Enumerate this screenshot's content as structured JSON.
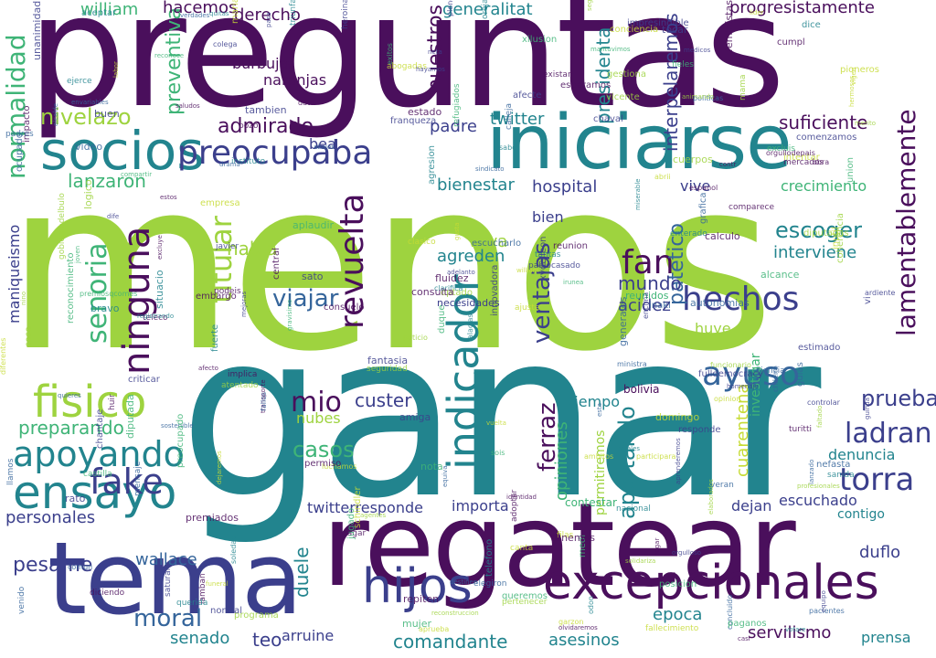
{
  "colors": {
    "dark_purple": "#4a0f5c",
    "indigo": "#3b3f8c",
    "blue": "#35659b",
    "teal": "#22848e",
    "green": "#3fb477",
    "lime": "#9ed33f",
    "yellow_green": "#c6db34"
  },
  "words": {
    "menos": "menos",
    "ganar": "ganar",
    "preguntas": "preguntas",
    "regatear": "regatear",
    "tema": "tema",
    "iniciarse": "iniciarse",
    "socios": "socios",
    "excepcionales": "excepcionales",
    "hijos": "hijos",
    "ensayo": "ensayo",
    "apoyando": "apoyando",
    "fisico": "fisico",
    "fake": "fake",
    "preocupaba": "preocupaba",
    "indicador": "indicador",
    "revuelta": "revuelta",
    "ninguna": "ninguna",
    "senoria": "senoria",
    "titular": "titular",
    "hechos": "hechos",
    "fan": "fan",
    "viajar": "viajar",
    "ayuso": "ayuso",
    "torra": "torra",
    "ladran": "ladran",
    "prueba": "prueba",
    "mio": "mio",
    "lamentablemente": "lamentablemente",
    "ferraz": "ferraz",
    "aportando": "aportando",
    "ventajas": "ventajas",
    "pesame": "pesame",
    "moral": "moral",
    "hacemos": "hacemos",
    "nuestros": "nuestros",
    "generalitat": "generalitat",
    "progresistamente": "progresistamente",
    "william": "william",
    "normalidad": "normalidad",
    "admirado": "admirado",
    "suficiente": "suficiente",
    "lanzaron": "lanzaron",
    "preparando": "preparando",
    "comandante": "comandante",
    "asesinos": "asesinos",
    "servilismo": "servilismo",
    "senado": "senado",
    "prensa": "prensa",
    "teo": "teo",
    "arruine": "arruine",
    "wallace": "wallace",
    "personales": "personales",
    "casos": "casos",
    "escuchado": "escuchado",
    "dejan": "dejan",
    "duflo": "duflo",
    "denuncia": "denuncia",
    "custer": "custer",
    "tiempo": "tiempo",
    "hospital": "hospital",
    "escoger": "escoger",
    "interviene": "interviene",
    "crecimiento": "crecimiento",
    "padre": "padre",
    "twitter": "twitter",
    "bienestar": "bienestar",
    "patetico": "patetico",
    "presidenta": "presidenta",
    "interpelaremos": "interpelaremos",
    "derecho": "derecho",
    "burbuja": "burbuja",
    "naranjas": "naranjas",
    "preventiva": "preventiva",
    "habla": "habla",
    "mundo": "mundo",
    "acidez": "acidez",
    "agreden": "agreden",
    "bien": "bien",
    "vive": "vive",
    "epoca": "epoca",
    "huye": "huye",
    "importa": "importa",
    "duele": "duele",
    "manifiesto": "manifiesto",
    "nivelazo": "nivelazo",
    "maniqueismo": "maniqueismo",
    "twitterresponde": "twitterresponde",
    "bea": "bea",
    "nubes": "nubes",
    "vava": "vava",
    "cuarentena": "cuarentena",
    "opiniones": "opiniones",
    "permitiremos": "permitiremos",
    "investigar": "investigar",
    "bolivia": "bolivia",
    "ocurrira": "ocurrira",
    "contestar": "contestar",
    "necesidades": "necesidades",
    "reunidos": "reunidos",
    "contigo": "contigo",
    "conciencia": "conciencia",
    "teleconciencia": "teleconciencia",
    "twitterresponde2": "twitterresponde"
  },
  "small_words": [
    "podeis",
    "william",
    "reconocimiento",
    "innovadora",
    "vigen",
    "fantasia",
    "ardiente",
    "mensaje",
    "obra",
    "pablocasado",
    "embargo",
    "esta",
    "clarifica",
    "instituto",
    "orgulloso",
    "domingo",
    "abajos",
    "programa",
    "exitos",
    "ajuste",
    "mariano",
    "medi",
    "unanimidad",
    "mama",
    "neta",
    "politicas",
    "joven",
    "llamos",
    "nefasta",
    "comun",
    "pasa",
    "elegiron",
    "turitti",
    "mujer",
    "nacional",
    "filas",
    "vuelta",
    "optado",
    "consuelo",
    "chaval",
    "venido",
    "sostenible",
    "guias",
    "sato",
    "teleco",
    "triunfado",
    "telefono",
    "heroinas",
    "cosa",
    "encima",
    "inutil",
    "video",
    "union",
    "controlar",
    "afecte",
    "aplaudir",
    "pagar",
    "tantas",
    "lanzado",
    "abogadas",
    "colega",
    "opinion",
    "registrando",
    "sabe",
    "aceptar",
    "existan",
    "odon",
    "casi",
    "dice",
    "reunion",
    "diputada",
    "dife",
    "falacias",
    "envariables",
    "saltes",
    "peticio",
    "inaki",
    "xvdelleon",
    "fluidez",
    "preocupado",
    "gobiernodelbulo",
    "miserable",
    "orejas",
    "fieles",
    "empresa",
    "alcance",
    "fulldemocracy",
    "premiosqcomes",
    "quitas",
    "normal",
    "jugado",
    "negar",
    "estos",
    "afecto",
    "hayamos",
    "vitales",
    "ambitos",
    "equiva",
    "intentar",
    "grafica",
    "pacientes",
    "concluido",
    "ministra",
    "veran",
    "xilusion",
    "consulta",
    "drama",
    "mejoras",
    "reconoce",
    "gravisimo",
    "coherencia",
    "estimado",
    "huir",
    "solidariza",
    "posicion",
    "participara",
    "olvidaremos",
    "espanol",
    "premiados",
    "elaborados",
    "castilla",
    "segundos",
    "central",
    "enterado",
    "excluye",
    "lamban",
    "excluis",
    "feministas",
    "irunea",
    "adelanto",
    "gestiona",
    "garzon",
    "tocar",
    "ciencia",
    "transporte",
    "vicente",
    "seguridad",
    "generales",
    "schindler",
    "franqueza",
    "sanida",
    "merito",
    "nino",
    "logico",
    "agresion",
    "fuerte",
    "javier",
    "impacto",
    "situacio",
    "aprueba",
    "mantuvimos",
    "diputadas",
    "orgullodepais",
    "destinen",
    "sindicato",
    "refugiados",
    "tenemos",
    "compartir",
    "reconstruccion",
    "diciendo",
    "autonomias",
    "chileno",
    "ocupado",
    "pertenecer",
    "cuerpos",
    "repiten",
    "identidad",
    "funeral",
    "plenocongreso",
    "cumpl",
    "luchamos",
    "atentado",
    "canta",
    "dejaremos",
    "aprenderemos",
    "abrii",
    "pioneros",
    "criticar",
    "clasico",
    "adoptar",
    "estado",
    "contr",
    "verdades",
    "funcionario",
    "votare",
    "profesionales",
    "soledad",
    "responde",
    "animando",
    "comenzamos",
    "escucharlo",
    "mercados",
    "homenaje",
    "pozo",
    "dato",
    "buen",
    "alcalde",
    "querida",
    "paganos",
    "vi",
    "sois",
    "ejerce",
    "labor",
    "duque",
    "faltado",
    "calleja",
    "bravo",
    "nota",
    "agentes",
    "amiga",
    "calculo",
    "impresindible",
    "esperamos",
    "guinda",
    "queremos",
    "fallecimiento",
    "chantaje",
    "quieres",
    "comparece",
    "implica",
    "tambien",
    "padres",
    "gusta",
    "fallos",
    "permiso",
    "hermosos",
    "saludos",
    "equipo",
    "conciencia",
    "rato",
    "lider",
    "medicos",
    "diferentes",
    "saturar"
  ]
}
